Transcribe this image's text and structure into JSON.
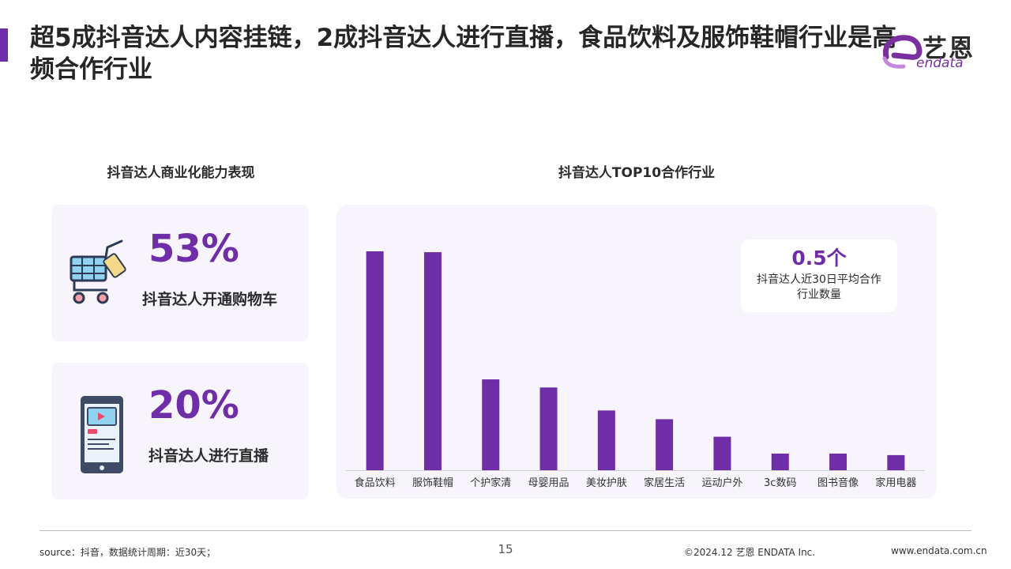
{
  "title": "超5成抖音达人内容挂链，2成抖音达人进行直播，食品饮料及服饰鞋帽行业是高频合作行业",
  "logo": {
    "cn": "艺恩",
    "en": "endata"
  },
  "left_section": {
    "heading": "抖音达人商业化能力表现",
    "stats": [
      {
        "value": "53%",
        "label": "抖音达人开通购物车",
        "icon": "shopping-cart-icon"
      },
      {
        "value": "20%",
        "label": "抖音达人进行直播",
        "icon": "live-phone-icon"
      }
    ]
  },
  "right_section": {
    "heading": "抖音达人TOP10合作行业",
    "callout": {
      "value": "0.5个",
      "label": "抖音达人近30日平均合作行业数量"
    }
  },
  "chart_data": {
    "type": "bar",
    "title": "抖音达人TOP10合作行业",
    "categories": [
      "食品饮料",
      "服饰鞋帽",
      "个护家清",
      "母婴用品",
      "美妆护肤",
      "家居生活",
      "运动户外",
      "3c数码",
      "图书音像",
      "家用电器"
    ],
    "values": [
      100,
      99.6,
      41.5,
      37.8,
      27.3,
      23.3,
      15.3,
      7.6,
      7.6,
      6.9
    ],
    "ylim": [
      0,
      100
    ],
    "grid": false,
    "bar_color": "#6f2da8"
  },
  "footer": {
    "source": "source：抖音，数据统计周期：近30天；",
    "page": "15",
    "copyright": "©2024.12  艺恩 ENDATA Inc.",
    "url": "www.endata.com.cn"
  },
  "colors": {
    "accent": "#6f2da8",
    "card_bg": "#f7f5fb"
  }
}
